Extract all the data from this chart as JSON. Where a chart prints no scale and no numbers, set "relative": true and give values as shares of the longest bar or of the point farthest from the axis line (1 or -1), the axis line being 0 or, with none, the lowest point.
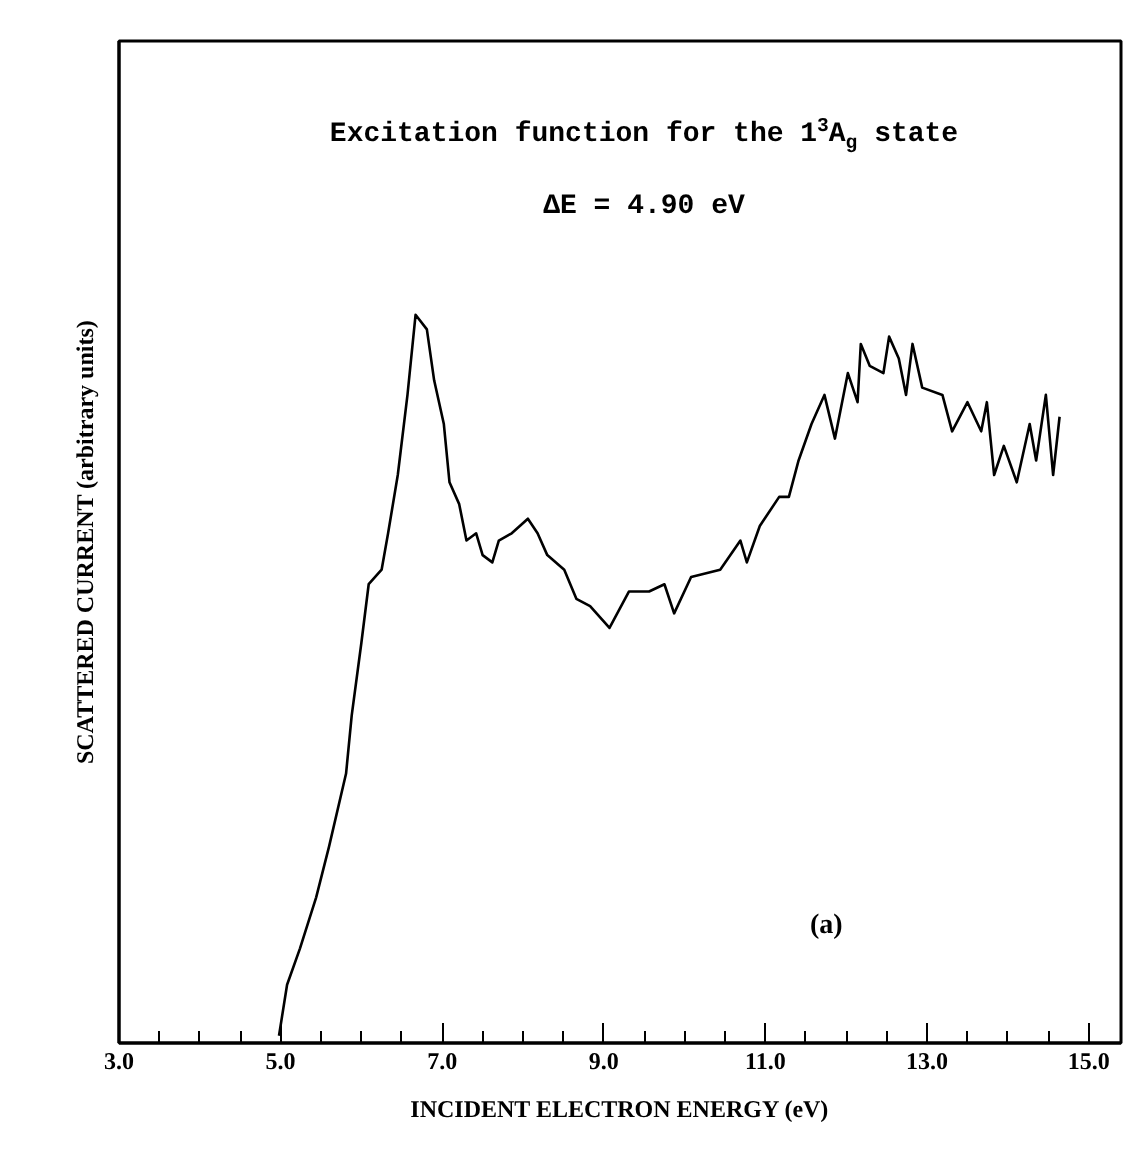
{
  "chart_data": {
    "type": "line",
    "title": "Excitation function for the 1$^{3}$A$_{g}$ state",
    "subtitle": "ΔE = 4.90 eV",
    "xlabel": "INCIDENT ELECTRON ENERGY (eV)",
    "ylabel": "SCATTERED CURRENT (arbitrary units)",
    "annotations": [
      "(a)"
    ],
    "relative": true,
    "tick_labels": "x",
    "grid": false,
    "xlim": [
      3.0,
      15.4
    ],
    "xticks": [
      {
        "value": 3,
        "label": "3.0"
      },
      {
        "value": 5,
        "label": "5.0"
      },
      {
        "value": 7,
        "label": "7.0"
      },
      {
        "value": 9,
        "label": "9.0"
      },
      {
        "value": 11,
        "label": "11.0"
      },
      {
        "value": 13,
        "label": "13.0"
      },
      {
        "value": 15,
        "label": "15.0"
      }
    ],
    "series": [
      {
        "color": "#000000",
        "x": [
          4.98,
          5.08,
          5.24,
          5.44,
          5.6,
          5.81,
          5.88,
          6.0,
          6.09,
          6.25,
          6.33,
          6.45,
          6.57,
          6.67,
          6.81,
          6.9,
          7.02,
          7.09,
          7.21,
          7.3,
          7.42,
          7.5,
          7.62,
          7.7,
          7.86,
          8.06,
          8.18,
          8.3,
          8.51,
          8.66,
          8.83,
          9.07,
          9.31,
          9.56,
          9.75,
          9.87,
          10.08,
          10.44,
          10.69,
          10.77,
          10.93,
          11.17,
          11.29,
          11.41,
          11.57,
          11.73,
          11.86,
          12.02,
          12.14,
          12.18,
          12.29,
          12.46,
          12.53,
          12.65,
          12.74,
          12.82,
          12.94,
          13.19,
          13.31,
          13.5,
          13.67,
          13.74,
          13.83,
          13.95,
          14.11,
          14.27,
          14.35,
          14.47,
          14.56,
          14.64
        ],
        "values": [
          0.01,
          0.08,
          0.13,
          0.2,
          0.27,
          0.37,
          0.45,
          0.55,
          0.63,
          0.65,
          0.7,
          0.78,
          0.89,
          1.0,
          0.98,
          0.91,
          0.85,
          0.77,
          0.74,
          0.69,
          0.7,
          0.67,
          0.66,
          0.69,
          0.7,
          0.72,
          0.7,
          0.67,
          0.65,
          0.61,
          0.6,
          0.57,
          0.62,
          0.62,
          0.63,
          0.59,
          0.64,
          0.65,
          0.69,
          0.66,
          0.71,
          0.75,
          0.75,
          0.8,
          0.85,
          0.89,
          0.83,
          0.92,
          0.88,
          0.96,
          0.93,
          0.92,
          0.97,
          0.94,
          0.89,
          0.96,
          0.9,
          0.89,
          0.84,
          0.88,
          0.84,
          0.88,
          0.78,
          0.82,
          0.77,
          0.85,
          0.8,
          0.89,
          0.78,
          0.86
        ]
      }
    ]
  }
}
